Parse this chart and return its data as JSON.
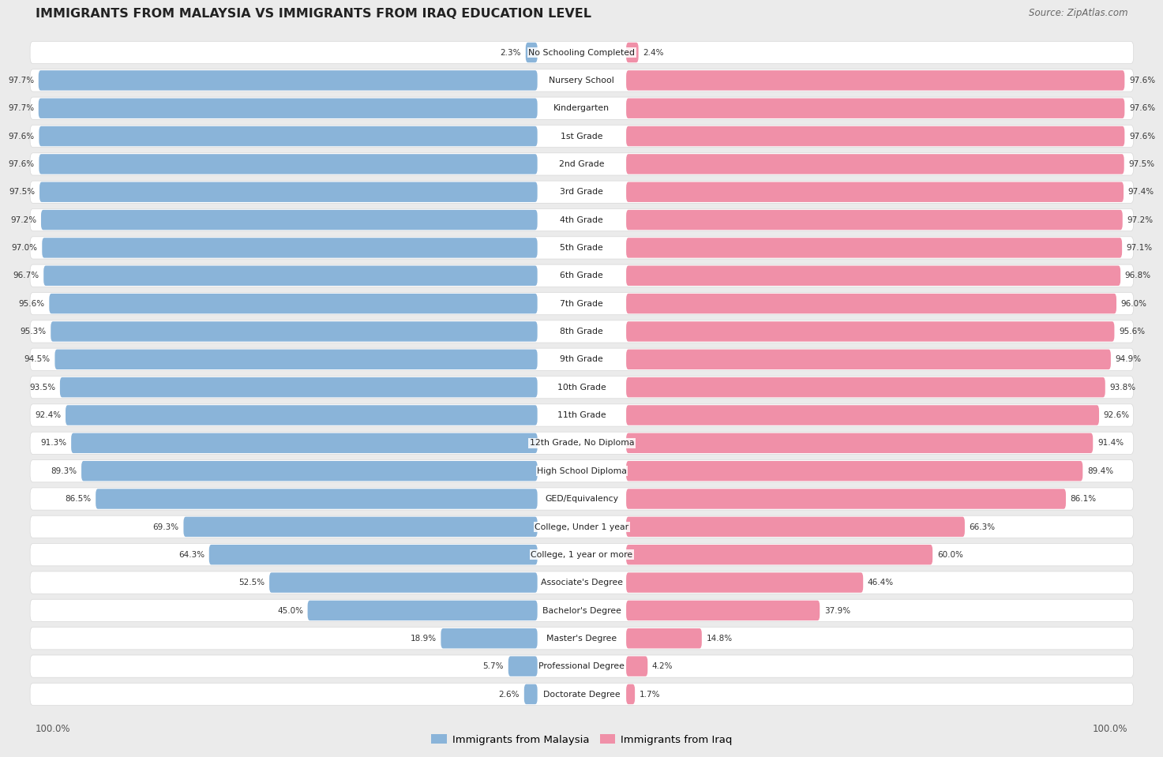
{
  "title": "IMMIGRANTS FROM MALAYSIA VS IMMIGRANTS FROM IRAQ EDUCATION LEVEL",
  "source": "Source: ZipAtlas.com",
  "categories": [
    "No Schooling Completed",
    "Nursery School",
    "Kindergarten",
    "1st Grade",
    "2nd Grade",
    "3rd Grade",
    "4th Grade",
    "5th Grade",
    "6th Grade",
    "7th Grade",
    "8th Grade",
    "9th Grade",
    "10th Grade",
    "11th Grade",
    "12th Grade, No Diploma",
    "High School Diploma",
    "GED/Equivalency",
    "College, Under 1 year",
    "College, 1 year or more",
    "Associate's Degree",
    "Bachelor's Degree",
    "Master's Degree",
    "Professional Degree",
    "Doctorate Degree"
  ],
  "malaysia_values": [
    2.3,
    97.7,
    97.7,
    97.6,
    97.6,
    97.5,
    97.2,
    97.0,
    96.7,
    95.6,
    95.3,
    94.5,
    93.5,
    92.4,
    91.3,
    89.3,
    86.5,
    69.3,
    64.3,
    52.5,
    45.0,
    18.9,
    5.7,
    2.6
  ],
  "iraq_values": [
    2.4,
    97.6,
    97.6,
    97.6,
    97.5,
    97.4,
    97.2,
    97.1,
    96.8,
    96.0,
    95.6,
    94.9,
    93.8,
    92.6,
    91.4,
    89.4,
    86.1,
    66.3,
    60.0,
    46.4,
    37.9,
    14.8,
    4.2,
    1.7
  ],
  "malaysia_color": "#8ab4d9",
  "iraq_color": "#f090a8",
  "background_color": "#ebebeb",
  "row_bg_color": "#ffffff",
  "legend_malaysia": "Immigrants from Malaysia",
  "legend_iraq": "Immigrants from Iraq",
  "axis_label_left": "100.0%",
  "axis_label_right": "100.0%"
}
